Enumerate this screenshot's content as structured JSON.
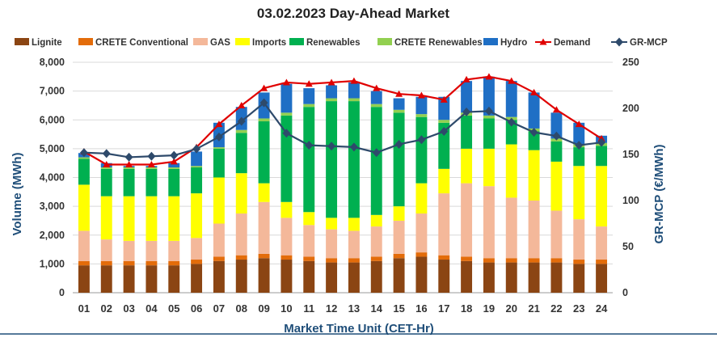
{
  "chart_data": {
    "type": "bar",
    "title": "03.02.2023  Day-Ahead Market",
    "xlabel": "Market Time Unit (CET-Hr)",
    "ylabel": "Volume (MWh)",
    "y2label": "GR-MCP (€/MWh)",
    "ylim": [
      0,
      8000
    ],
    "y2lim": [
      0,
      250
    ],
    "yticks": [
      "0",
      "1,000",
      "2,000",
      "3,000",
      "4,000",
      "5,000",
      "6,000",
      "7,000",
      "8,000"
    ],
    "y2ticks": [
      "0",
      "50",
      "100",
      "150",
      "200",
      "250"
    ],
    "grid": true,
    "legend_position": "top",
    "categories": [
      "01",
      "02",
      "03",
      "04",
      "05",
      "06",
      "07",
      "08",
      "09",
      "10",
      "11",
      "12",
      "13",
      "14",
      "15",
      "16",
      "17",
      "18",
      "19",
      "20",
      "21",
      "22",
      "23",
      "24"
    ],
    "series": [
      {
        "name": "Lignite",
        "kind": "stacked-bar",
        "color": "#8B4513",
        "values": [
          950,
          950,
          950,
          950,
          950,
          1000,
          1100,
          1150,
          1200,
          1150,
          1100,
          1050,
          1050,
          1100,
          1200,
          1250,
          1150,
          1100,
          1050,
          1050,
          1050,
          1050,
          1000,
          1000
        ]
      },
      {
        "name": "CRETE Conventional",
        "kind": "stacked-bar",
        "color": "#E36C0A",
        "values": [
          150,
          150,
          150,
          150,
          150,
          150,
          150,
          150,
          150,
          150,
          150,
          150,
          150,
          150,
          150,
          150,
          150,
          150,
          150,
          150,
          150,
          150,
          150,
          150
        ]
      },
      {
        "name": "GAS",
        "kind": "stacked-bar",
        "color": "#F4B89A",
        "values": [
          1050,
          750,
          700,
          700,
          700,
          750,
          1150,
          1450,
          1800,
          1300,
          1100,
          1000,
          950,
          1050,
          1150,
          1350,
          2150,
          2550,
          2500,
          2100,
          2000,
          1650,
          1400,
          1150
        ]
      },
      {
        "name": "Imports",
        "kind": "stacked-bar",
        "color": "#FFFF00",
        "values": [
          1600,
          1500,
          1550,
          1550,
          1550,
          1550,
          1600,
          1400,
          650,
          550,
          450,
          400,
          450,
          400,
          500,
          1050,
          850,
          1200,
          1300,
          1850,
          1750,
          1700,
          1850,
          2100
        ]
      },
      {
        "name": "Renewables",
        "kind": "stacked-bar",
        "color": "#00B050",
        "values": [
          900,
          950,
          950,
          950,
          950,
          900,
          1000,
          1400,
          2150,
          3000,
          3650,
          4050,
          4050,
          3750,
          3250,
          2300,
          1600,
          1150,
          1050,
          850,
          650,
          700,
          650,
          700
        ]
      },
      {
        "name": "CRETE Renewables",
        "kind": "stacked-bar",
        "color": "#92D050",
        "values": [
          50,
          50,
          50,
          50,
          50,
          50,
          50,
          100,
          100,
          100,
          100,
          100,
          100,
          100,
          100,
          100,
          100,
          100,
          100,
          100,
          100,
          100,
          100,
          100
        ]
      },
      {
        "name": "Hydro",
        "kind": "stacked-bar",
        "color": "#1F6FC5",
        "values": [
          150,
          150,
          50,
          50,
          150,
          500,
          850,
          800,
          900,
          1000,
          550,
          450,
          550,
          450,
          400,
          600,
          800,
          1100,
          1350,
          1250,
          1250,
          900,
          750,
          250
        ]
      },
      {
        "name": "Demand",
        "kind": "line",
        "axis": "left",
        "color": "#E00000",
        "marker": "triangle",
        "values": [
          4900,
          4450,
          4450,
          4450,
          4550,
          5050,
          5850,
          6500,
          7100,
          7300,
          7250,
          7300,
          7350,
          7100,
          6900,
          6850,
          6700,
          7400,
          7500,
          7350,
          6950,
          6350,
          5850,
          5350
        ]
      },
      {
        "name": "GR-MCP",
        "kind": "line",
        "axis": "right",
        "color": "#2E4A6B",
        "marker": "diamond",
        "values": [
          152,
          151,
          147,
          148,
          149,
          156,
          169,
          186,
          206,
          173,
          160,
          159,
          158,
          152,
          161,
          166,
          175,
          196,
          197,
          185,
          174,
          170,
          160,
          163
        ]
      }
    ]
  }
}
